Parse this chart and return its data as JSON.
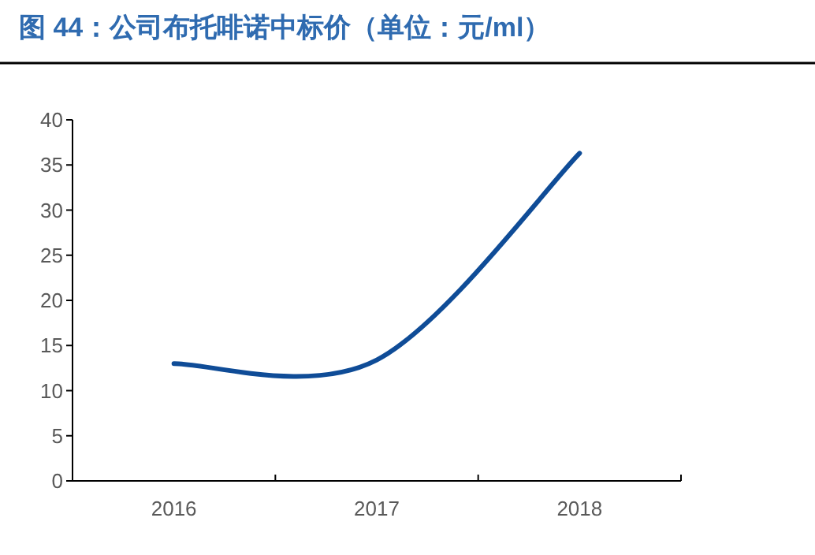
{
  "chart_data": {
    "type": "line",
    "title": "图 44：公司布托啡诺中标价（单位：元/ml）",
    "categories": [
      "2016",
      "2017",
      "2018"
    ],
    "series": [
      {
        "color": "#0f4c97",
        "values": [
          13.0,
          13.4,
          36.3
        ]
      }
    ],
    "ylim": [
      0,
      40
    ],
    "yticks": [
      0,
      5,
      10,
      15,
      20,
      25,
      30,
      35,
      40
    ],
    "grid": false,
    "marker": "none",
    "line_style": "solid"
  }
}
